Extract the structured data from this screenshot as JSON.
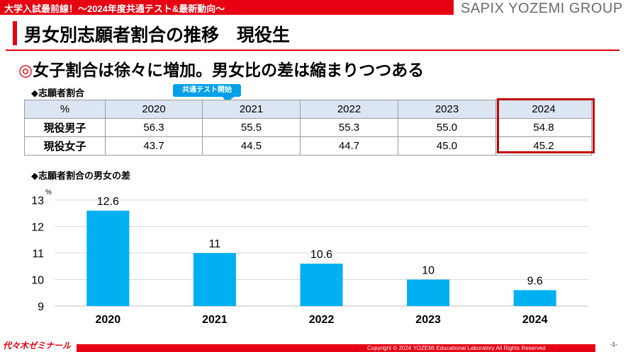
{
  "header": {
    "banner": "大学入試最前線！～2024年度共通テスト&最新動向～",
    "brand": "SAPIX YOZEMI GROUP"
  },
  "slide": {
    "title": "男女別志願者割合の推移　現役生",
    "headline_mark": "◎",
    "headline": "女子割合は徐々に増加。男女比の差は縮まりつつある"
  },
  "table_section": {
    "label": "◆志願者割合",
    "callout": "共通テスト開始",
    "unit": "%",
    "years": [
      "2020",
      "2021",
      "2022",
      "2023",
      "2024"
    ],
    "rows": [
      {
        "label": "現役男子",
        "values": [
          "56.3",
          "55.5",
          "55.3",
          "55.0",
          "54.8"
        ]
      },
      {
        "label": "現役女子",
        "values": [
          "43.7",
          "44.5",
          "44.7",
          "45.0",
          "45.2"
        ]
      }
    ],
    "highlight_year": "2024",
    "highlight_color": "#c00000"
  },
  "chart_section": {
    "label": "◆志願者割合の男女の差"
  },
  "chart_data": {
    "type": "bar",
    "categories": [
      "2020",
      "2021",
      "2022",
      "2023",
      "2024"
    ],
    "values": [
      12.6,
      11,
      10.6,
      10,
      9.6
    ],
    "value_labels": [
      "12.6",
      "11",
      "10.6",
      "10",
      "9.6"
    ],
    "ylim": [
      9,
      13
    ],
    "yticks": [
      "9",
      "10",
      "11",
      "12",
      "13"
    ],
    "unit": "%",
    "title": "",
    "xlabel": "",
    "ylabel": "",
    "grid": true,
    "bar_color": "#00b0f0"
  },
  "footer": {
    "logo": "代々木ゼミナール",
    "copyright": "Copyright © 2024 YOZEMI Educational Laboratory All Rights Reserved",
    "page": "-1-"
  },
  "colors": {
    "accent": "#e60012",
    "table_header": "#dce6f2",
    "callout": "#00a0e9"
  }
}
